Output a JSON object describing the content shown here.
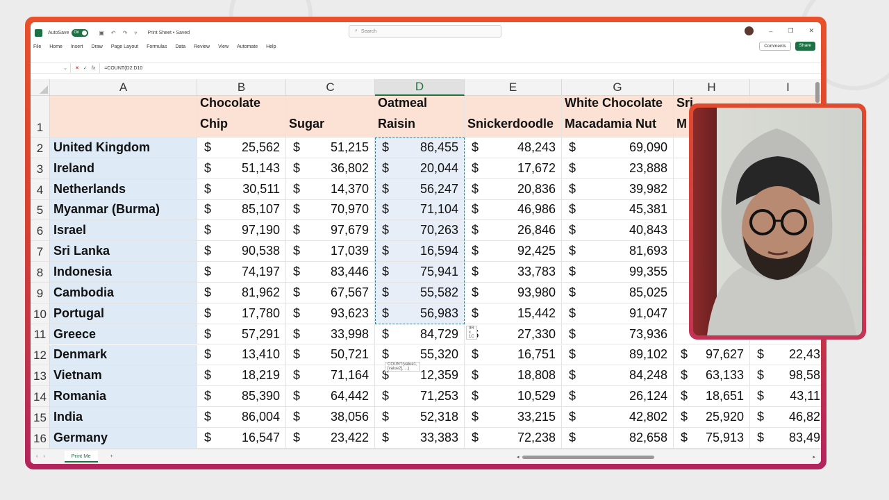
{
  "titlebar": {
    "autosave_label": "AutoSave",
    "autosave_state": "On",
    "doc_title": "Print Sheet • Saved",
    "search_placeholder": "Search",
    "minimize": "–",
    "restore": "❐",
    "close": "✕"
  },
  "menu": [
    "File",
    "Home",
    "Insert",
    "Draw",
    "Page Layout",
    "Formulas",
    "Data",
    "Review",
    "View",
    "Automate",
    "Help"
  ],
  "buttons": {
    "comments": "Comments",
    "share": "Share"
  },
  "formula_bar": {
    "name_box": "",
    "fx": "fx",
    "formula": "=COUNT(D2:D10"
  },
  "columns": [
    "A",
    "B",
    "C",
    "D",
    "E",
    "G",
    "H",
    "I"
  ],
  "headers": {
    "B": [
      "Chocolate",
      "Chip"
    ],
    "C": [
      "",
      "Sugar"
    ],
    "D": [
      "Oatmeal",
      "Raisin"
    ],
    "E": [
      "",
      "Snickerdoodle"
    ],
    "G": [
      "White Chocolate",
      "Macadamia Nut"
    ],
    "H": [
      "Sri",
      "M"
    ]
  },
  "currency_symbol": "$",
  "rows": [
    {
      "n": "2",
      "country": "United Kingdom",
      "B": "25,562",
      "C": "51,215",
      "D": "86,455",
      "E": "48,243",
      "G": "69,090",
      "H": "",
      "I": ""
    },
    {
      "n": "3",
      "country": "Ireland",
      "B": "51,143",
      "C": "36,802",
      "D": "20,044",
      "E": "17,672",
      "G": "23,888",
      "H": "",
      "I": ""
    },
    {
      "n": "4",
      "country": "Netherlands",
      "B": "30,511",
      "C": "14,370",
      "D": "56,247",
      "E": "20,836",
      "G": "39,982",
      "H": "",
      "I": ""
    },
    {
      "n": "5",
      "country": "Myanmar (Burma)",
      "B": "85,107",
      "C": "70,970",
      "D": "71,104",
      "E": "46,986",
      "G": "45,381",
      "H": "",
      "I": ""
    },
    {
      "n": "6",
      "country": "Israel",
      "B": "97,190",
      "C": "97,679",
      "D": "70,263",
      "E": "26,846",
      "G": "40,843",
      "H": "",
      "I": ""
    },
    {
      "n": "7",
      "country": "Sri Lanka",
      "B": "90,538",
      "C": "17,039",
      "D": "16,594",
      "E": "92,425",
      "G": "81,693",
      "H": "",
      "I": ""
    },
    {
      "n": "8",
      "country": "Indonesia",
      "B": "74,197",
      "C": "83,446",
      "D": "75,941",
      "E": "33,783",
      "G": "99,355",
      "H": "",
      "I": ""
    },
    {
      "n": "9",
      "country": "Cambodia",
      "B": "81,962",
      "C": "67,567",
      "D": "55,582",
      "E": "93,980",
      "G": "85,025",
      "H": "",
      "I": ""
    },
    {
      "n": "10",
      "country": "Portugal",
      "B": "17,780",
      "C": "93,623",
      "D": "56,983",
      "E": "15,442",
      "G": "91,047",
      "H": "",
      "I": ""
    },
    {
      "n": "11",
      "country": "Greece",
      "B": "57,291",
      "C": "33,998",
      "D": "84,729",
      "E": "27,330",
      "G": "73,936",
      "H": "",
      "I": ""
    },
    {
      "n": "12",
      "country": "Denmark",
      "B": "13,410",
      "C": "50,721",
      "D": "55,320",
      "E": "16,751",
      "G": "89,102",
      "H": "97,627",
      "I": "22,43"
    },
    {
      "n": "13",
      "country": "Vietnam",
      "B": "18,219",
      "C": "71,164",
      "D": "12,359",
      "E": "18,808",
      "G": "84,248",
      "H": "63,133",
      "I": "98,58"
    },
    {
      "n": "14",
      "country": "Romania",
      "B": "85,390",
      "C": "64,442",
      "D": "71,253",
      "E": "10,529",
      "G": "26,124",
      "H": "18,651",
      "I": "43,11"
    },
    {
      "n": "15",
      "country": "India",
      "B": "86,004",
      "C": "38,056",
      "D": "52,318",
      "E": "33,215",
      "G": "42,802",
      "H": "25,920",
      "I": "46,82"
    },
    {
      "n": "16",
      "country": "Germany",
      "B": "16,547",
      "C": "23,422",
      "D": "33,383",
      "E": "72,238",
      "G": "82,658",
      "H": "75,913",
      "I": "83,49"
    }
  ],
  "tooltips": {
    "size_hint": "9R x 1C",
    "func_hint": "COUNT(value1, [value2], ...)"
  },
  "sheet_tab": "Print Me",
  "add_sheet": "+",
  "colors": {
    "frame": "#e04a2d",
    "excel_green": "#1e7145",
    "header_fill": "#fbe2d5",
    "country_fill": "#deebf7"
  }
}
